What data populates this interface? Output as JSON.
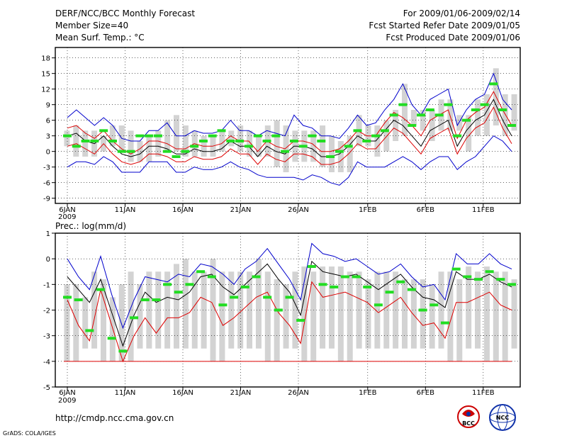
{
  "header": {
    "title": "DERF/NCC/BCC Monthly Forecast",
    "member_size": "Member Size=40",
    "variable": "Mean Surf. Temp.: °C",
    "for_range": "For 2009/01/06-2009/02/14",
    "fcst_started": "Fcst Started Refer Date 2009/01/05",
    "fcst_produced": "Fcst Produced Date 2009/01/06"
  },
  "footer": {
    "url": "http://cmdp.ncc.cma.gov.cn",
    "grads": "GrADS: COLA/IGES",
    "logo_bcc": "BCC",
    "logo_ncc": "NCC"
  },
  "colors": {
    "bar": "#d3d3d3",
    "mean": "#000000",
    "upper": "#0000cc",
    "lower": "#dd0000",
    "green": "#22dd22",
    "frame": "#000000"
  },
  "chart_data": [
    {
      "type": "line",
      "title": "Mean Surf. Temp.: °C",
      "x_ticks": [
        "6JAN",
        "11JAN",
        "16JAN",
        "21JAN",
        "26JAN",
        "1FEB",
        "6FEB",
        "11FEB"
      ],
      "x_year": "2009",
      "ylim": [
        -10,
        20
      ],
      "y_ticks": [
        -9,
        -6,
        -3,
        0,
        3,
        6,
        9,
        12,
        15,
        18
      ],
      "bar_low": [
        1,
        -1,
        -1,
        -1,
        0,
        1,
        0,
        -2,
        -2,
        -2,
        -1,
        0,
        0,
        -1,
        -1,
        -1,
        -1,
        0,
        1,
        0,
        -1,
        -1,
        -1,
        -3,
        -4,
        -2,
        -2,
        -2,
        -3,
        -4,
        -4,
        -4,
        1,
        1,
        -1,
        0,
        2,
        3,
        5,
        4,
        2,
        4,
        4,
        4,
        0,
        3,
        3,
        5,
        3,
        4
      ],
      "bar_high": [
        4,
        5,
        4,
        4,
        3,
        5,
        5,
        4,
        2,
        3,
        4,
        6,
        7,
        5,
        4,
        3,
        3,
        4,
        4,
        5,
        4,
        3,
        5,
        6,
        5,
        4,
        4,
        4,
        5,
        3,
        2,
        3,
        7,
        5,
        5,
        6,
        8,
        13,
        8,
        8,
        8,
        10,
        10,
        7,
        7,
        10,
        11,
        16,
        11,
        11
      ],
      "green": [
        3,
        1,
        2,
        2,
        4,
        2,
        0,
        0,
        3,
        3,
        3,
        0,
        -1,
        0,
        1,
        2,
        3,
        4,
        2,
        2,
        1,
        3,
        2,
        3,
        0,
        2,
        1,
        3,
        2,
        -1,
        0,
        1,
        4,
        2,
        3,
        4,
        7,
        9,
        5,
        7,
        8,
        7,
        9,
        3,
        6,
        8,
        9,
        13,
        8,
        5
      ],
      "mean": [
        3,
        3.5,
        2,
        1.5,
        3,
        1,
        -0.5,
        -1,
        -0.5,
        1,
        1,
        0.5,
        -0.5,
        -0.5,
        0.5,
        0,
        0,
        0.5,
        2,
        1,
        1,
        -1,
        1,
        0,
        -0.5,
        1,
        1,
        0.5,
        -1,
        -1,
        -0.5,
        1,
        3,
        2,
        2,
        4,
        6,
        5,
        3,
        1,
        4,
        5,
        6,
        1,
        4,
        6,
        7,
        10,
        6,
        3
      ],
      "upper": [
        6.5,
        8,
        6.5,
        5,
        6.5,
        5,
        2.5,
        2,
        2,
        4,
        4,
        5.5,
        3,
        3,
        4,
        3.5,
        3.5,
        4,
        6,
        4,
        4,
        3,
        4,
        3.5,
        3,
        7,
        5,
        4.5,
        3,
        3,
        2.5,
        4.5,
        7,
        5,
        5.5,
        8,
        10,
        13,
        9,
        7,
        10,
        11,
        12,
        5,
        8,
        10,
        11,
        15,
        10,
        8
      ],
      "lower": [
        -3,
        -2,
        -2,
        -2.5,
        -1,
        -2,
        -4,
        -4,
        -4,
        -2,
        -2,
        -2,
        -4,
        -4,
        -3,
        -3.5,
        -3.5,
        -3,
        -2,
        -3,
        -3.5,
        -4.5,
        -5,
        -5,
        -5,
        -5,
        -5.5,
        -4.5,
        -5,
        -6,
        -6.5,
        -5,
        -2,
        -3,
        -3,
        -3,
        -2,
        -1,
        -2,
        -3.5,
        -2,
        -1,
        -1,
        -3.5,
        -2,
        -1,
        1,
        3,
        2,
        0
      ],
      "red_upper": [
        4.5,
        5,
        3.5,
        2.5,
        4,
        2,
        0.5,
        -0.5,
        0.5,
        2,
        2,
        1.5,
        0.5,
        0.5,
        1.5,
        1,
        1,
        1.5,
        3,
        2,
        2,
        0,
        2,
        1,
        0.5,
        2,
        2,
        1.5,
        0,
        0,
        0.5,
        2,
        4,
        3,
        3,
        5.5,
        7.5,
        6.5,
        5,
        3,
        6,
        7,
        8,
        2.5,
        6,
        7.5,
        8.5,
        11.5,
        8,
        5
      ],
      "red_lower": [
        1,
        1.5,
        0.5,
        -0.5,
        1.5,
        -0.5,
        -2,
        -2.5,
        -2,
        -0.5,
        -0.5,
        -1,
        -2,
        -2,
        -1,
        -1.5,
        -1.5,
        -1,
        0.5,
        -0.5,
        -0.5,
        -2.5,
        -0.5,
        -1.5,
        -2,
        -0.5,
        -0.5,
        -1,
        -2.5,
        -2.5,
        -2,
        -0.5,
        1.5,
        0.5,
        0.5,
        2.5,
        4.5,
        3.5,
        1.5,
        -0.5,
        2.5,
        3.5,
        4.5,
        -0.5,
        2.5,
        4.5,
        5.5,
        8.5,
        4.5,
        1.5
      ]
    },
    {
      "type": "line",
      "title": "Prec.: log(mm/d)",
      "x_ticks": [
        "6JAN",
        "11JAN",
        "16JAN",
        "21JAN",
        "26JAN",
        "1FEB",
        "6FEB",
        "11FEB"
      ],
      "x_year": "2009",
      "ylim": [
        -5,
        1
      ],
      "y_ticks": [
        -5,
        -4,
        -3,
        -2,
        -1,
        0,
        1
      ],
      "bar_low": [
        -4,
        -4,
        -3.5,
        -3.5,
        -4,
        -4,
        -4,
        -4,
        -3.5,
        -3.5,
        -3.5,
        -3.5,
        -3.5,
        -3.5,
        -3.5,
        -3.5,
        -4,
        -4,
        -3.5,
        -3.5,
        -3.5,
        -3.5,
        -4,
        -4,
        -3.5,
        -3.5,
        -4,
        -4,
        -3.5,
        -3.5,
        -4,
        -4,
        -3.5,
        -3.5,
        -3.5,
        -3.5,
        -3.5,
        -3.5,
        -3.5,
        -3.5,
        -3.5,
        -3.5,
        -4,
        -4,
        -3.5,
        -3.5,
        -4,
        -4,
        -4,
        -3.5
      ],
      "bar_high": [
        -1,
        -1,
        -1.5,
        -0.5,
        -0.8,
        -1.5,
        -1,
        -0.5,
        -1,
        -0.5,
        -0.5,
        -0.5,
        -0.2,
        0,
        -0.5,
        -0.5,
        0,
        -0.5,
        -0.5,
        -0.5,
        -0.5,
        0,
        -0.5,
        -0.8,
        -1,
        -0.5,
        -0.3,
        -0.5,
        -0.3,
        -0.3,
        -0.3,
        -0.5,
        -0.5,
        -0.8,
        -0.5,
        -0.5,
        -0.5,
        -0.8,
        -0.8,
        -0.8,
        -1,
        -0.5,
        -0.5,
        -0.8,
        -0.3,
        -0.5,
        -0.3,
        -0.5,
        -0.5,
        -0.8
      ],
      "green": [
        -1.5,
        -1.6,
        -2.8,
        -1.2,
        -3.1,
        -3.6,
        -2.3,
        -1.6,
        -1.6,
        -1,
        -1.3,
        -1,
        -0.5,
        -0.7,
        -1.8,
        -1.5,
        -1.1,
        -0.7,
        -1.5,
        -2,
        -1.5,
        -2.4,
        -0.3,
        -1,
        -1.1,
        -0.7,
        -0.7,
        -1.1,
        -1.8,
        -1.3,
        -0.9,
        -1.2,
        -2,
        -1.8,
        -2.5,
        -0.4,
        -0.7,
        -0.8,
        -0.5,
        -0.8,
        -1
      ],
      "mean": [
        -0.7,
        -1.2,
        -1.7,
        -0.8,
        -2.1,
        -3.4,
        -2.2,
        -1.3,
        -1.7,
        -1.5,
        -1.6,
        -1.3,
        -0.7,
        -0.6,
        -1.1,
        -1.4,
        -1,
        -0.6,
        -0.2,
        -0.8,
        -1.3,
        -2.2,
        -0.1,
        -0.5,
        -0.6,
        -0.7,
        -0.6,
        -0.9,
        -1.2,
        -0.9,
        -0.6,
        -1.1,
        -1.5,
        -1.6,
        -1.9,
        -0.5,
        -0.8,
        -0.8,
        -0.6,
        -0.9,
        -1.1
      ],
      "upper": [
        0,
        -0.7,
        -1.2,
        0.1,
        -1.4,
        -2.7,
        -1.6,
        -0.7,
        -0.8,
        -0.9,
        -0.6,
        -0.7,
        -0.2,
        -0.3,
        -0.6,
        -1,
        -0.4,
        -0.1,
        0.4,
        -0.2,
        -0.8,
        -1.6,
        0.6,
        0.2,
        0.1,
        -0.1,
        0,
        -0.3,
        -0.6,
        -0.5,
        -0.2,
        -0.7,
        -1.1,
        -1,
        -1.6,
        0.2,
        -0.2,
        -0.2,
        0.2,
        -0.2,
        -0.4
      ],
      "lower": [
        -1.6,
        -2.6,
        -3.2,
        -1.2,
        -2.6,
        -4,
        -3,
        -2.3,
        -2.9,
        -2.3,
        -2.3,
        -2.1,
        -1.5,
        -1.7,
        -2.6,
        -2.3,
        -1.9,
        -1.5,
        -1.3,
        -2.1,
        -2.6,
        -3.3,
        -0.9,
        -1.5,
        -1.4,
        -1.3,
        -1.5,
        -1.7,
        -2.1,
        -1.8,
        -1.5,
        -2.1,
        -2.6,
        -2.5,
        -3.1,
        -1.7,
        -1.7,
        -1.5,
        -1.3,
        -1.8,
        -2
      ],
      "floor": -4
    }
  ]
}
